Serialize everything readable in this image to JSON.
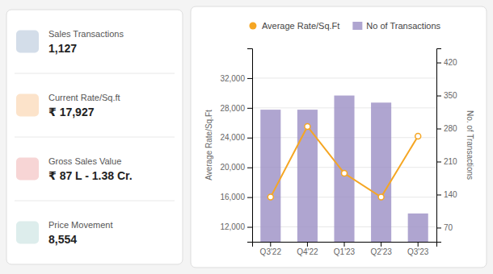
{
  "chart_data": {
    "type": "bar",
    "categories": [
      "Q3'22",
      "Q4'22",
      "Q1'23",
      "Q2'23",
      "Q3'23"
    ],
    "series": [
      {
        "name": "Average Rate/Sq.Ft",
        "type": "line",
        "marker": "circle",
        "color": "#f5a623",
        "values": [
          16000,
          25500,
          19200,
          16000,
          24200
        ]
      },
      {
        "name": "No of Transactions",
        "type": "bar",
        "axis": "y2",
        "color": "#9b8ec4",
        "values": [
          320,
          320,
          350,
          335,
          100
        ]
      }
    ],
    "ylabel": "Average Rate/Sq.Ft",
    "y2label": "No. of Transactions",
    "ylim": [
      10000,
      36000
    ],
    "yticks": [
      {
        "value": 12000,
        "label": "12,000"
      },
      {
        "value": 16000,
        "label": "16,000"
      },
      {
        "value": 20000,
        "label": "20,000"
      },
      {
        "value": 24000,
        "label": "24,000"
      },
      {
        "value": 28000,
        "label": "28,000"
      },
      {
        "value": 32000,
        "label": "32,000"
      }
    ],
    "y2lim": [
      40,
      450
    ],
    "y2ticks": [
      70,
      140,
      210,
      280,
      350,
      420
    ],
    "grid": true,
    "legend": "top",
    "annotations": [
      "Sales Transactions",
      "1,127",
      "Current Rate/Sq.ft",
      "₹ 17,927",
      "Gross Sales Value",
      "₹ 87 L - 1.38 Cr.",
      "Price Movement",
      "8,554"
    ]
  }
}
